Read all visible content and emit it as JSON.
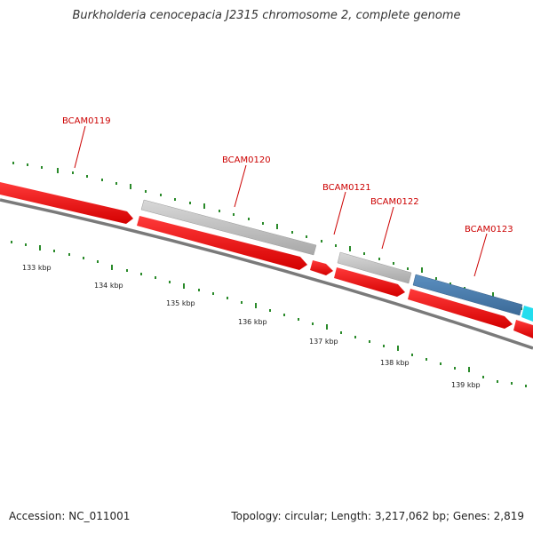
{
  "title": "Burkholderia cenocepacia J2315 chromosome 2, complete genome",
  "footer": {
    "accession": "Accession: NC_011001",
    "summary": "Topology: circular; Length: 3,217,062 bp; Genes: 2,819"
  },
  "colors": {
    "forward_gene": "#ff0000",
    "reverse_gene": "#bbbbbb",
    "blue_gene": "#4f7fae",
    "cyan_gene": "#22ddee",
    "label": "#cc0000",
    "ticks": "#2a8a2a",
    "backbone": "#777777"
  },
  "gene_labels": [
    "BCAM0119",
    "BCAM0120",
    "BCAM0121",
    "BCAM0122",
    "BCAM0123"
  ],
  "kbp_labels": [
    "133 kbp",
    "134 kbp",
    "135 kbp",
    "136 kbp",
    "137 kbp",
    "138 kbp",
    "139 kbp"
  ]
}
